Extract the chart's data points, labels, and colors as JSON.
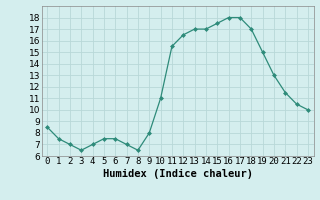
{
  "x": [
    0,
    1,
    2,
    3,
    4,
    5,
    6,
    7,
    8,
    9,
    10,
    11,
    12,
    13,
    14,
    15,
    16,
    17,
    18,
    19,
    20,
    21,
    22,
    23
  ],
  "y": [
    8.5,
    7.5,
    7.0,
    6.5,
    7.0,
    7.5,
    7.5,
    7.0,
    6.5,
    8.0,
    11.0,
    15.5,
    16.5,
    17.0,
    17.0,
    17.5,
    18.0,
    18.0,
    17.0,
    15.0,
    13.0,
    11.5,
    10.5,
    10.0
  ],
  "line_color": "#2e8b7a",
  "marker": "D",
  "marker_size": 2.0,
  "bg_color": "#d4eeee",
  "xlabel": "Humidex (Indice chaleur)",
  "ylim": [
    6,
    19
  ],
  "xlim": [
    -0.5,
    23.5
  ],
  "yticks": [
    6,
    7,
    8,
    9,
    10,
    11,
    12,
    13,
    14,
    15,
    16,
    17,
    18
  ],
  "xtick_labels": [
    "0",
    "1",
    "2",
    "3",
    "4",
    "5",
    "6",
    "7",
    "8",
    "9",
    "10",
    "11",
    "12",
    "13",
    "14",
    "15",
    "16",
    "17",
    "18",
    "19",
    "20",
    "21",
    "22",
    "23"
  ],
  "grid_color": "#b8d8d8",
  "xlabel_fontsize": 7.5,
  "tick_fontsize": 6.5,
  "linewidth": 0.9
}
